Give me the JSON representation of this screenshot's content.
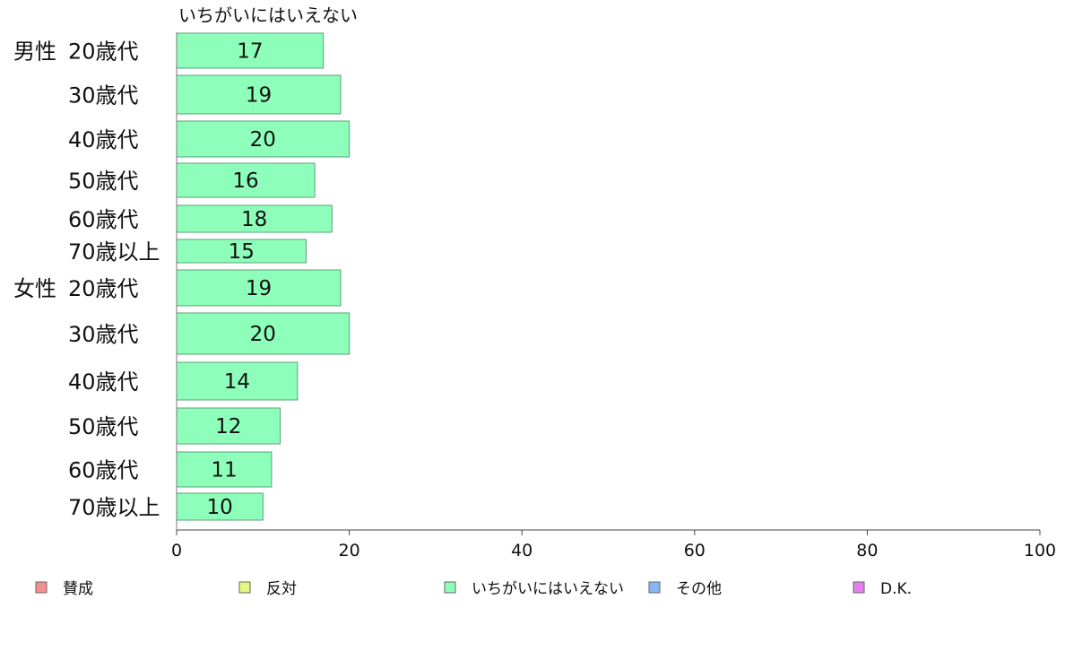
{
  "chart_data": {
    "type": "bar",
    "orientation": "horizontal",
    "series_header": "いちがいにはいえない",
    "groups": [
      {
        "name": "男性",
        "rows": [
          {
            "label": "20歳代",
            "value": 17
          },
          {
            "label": "30歳代",
            "value": 19
          },
          {
            "label": "40歳代",
            "value": 20
          },
          {
            "label": "50歳代",
            "value": 16
          },
          {
            "label": "60歳代",
            "value": 18
          },
          {
            "label": "70歳以上",
            "value": 15
          }
        ]
      },
      {
        "name": "女性",
        "rows": [
          {
            "label": "20歳代",
            "value": 19
          },
          {
            "label": "30歳代",
            "value": 20
          },
          {
            "label": "40歳代",
            "value": 14
          },
          {
            "label": "50歳代",
            "value": 12
          },
          {
            "label": "60歳代",
            "value": 11
          },
          {
            "label": "70歳以上",
            "value": 10
          }
        ]
      }
    ],
    "xlim": [
      0,
      100
    ],
    "xticks": [
      "0",
      "20",
      "40",
      "60",
      "80",
      "100"
    ],
    "bar_color": "#8effbb",
    "bar_stroke": "#5aa07a",
    "legend": [
      {
        "label": "賛成",
        "color": "#f58f8f"
      },
      {
        "label": "反対",
        "color": "#e6f77f"
      },
      {
        "label": "いちがいにはいえない",
        "color": "#8effbb"
      },
      {
        "label": "その他",
        "color": "#86b6f5"
      },
      {
        "label": "D.K.",
        "color": "#e57ff0"
      }
    ],
    "legend_position": "bottom"
  }
}
